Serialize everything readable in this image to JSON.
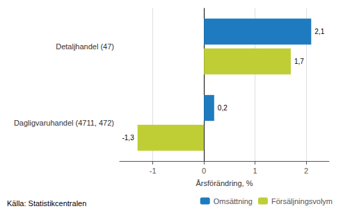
{
  "chart_data": {
    "type": "bar",
    "orientation": "horizontal",
    "categories": [
      "Dagligvaruhandel (4711, 472)",
      "Detaljhandel (47)"
    ],
    "series": [
      {
        "name": "Omsättning",
        "color": "#1f7bbf",
        "values": [
          0.2,
          2.1
        ],
        "value_labels": [
          "0,2",
          "2,1"
        ]
      },
      {
        "name": "Försäljningsvolym",
        "color": "#bfce35",
        "values": [
          -1.3,
          1.7
        ],
        "value_labels": [
          "-1,3",
          "1,7"
        ]
      }
    ],
    "xlabel": "Årsförändring, %",
    "xlim": [
      -1.65,
      2.45
    ],
    "xticks": [
      -1,
      0,
      1,
      2
    ],
    "grid": true,
    "data_labels": true,
    "legend": "lower right",
    "annotations": [
      "Källa: Statistikcentralen"
    ]
  }
}
